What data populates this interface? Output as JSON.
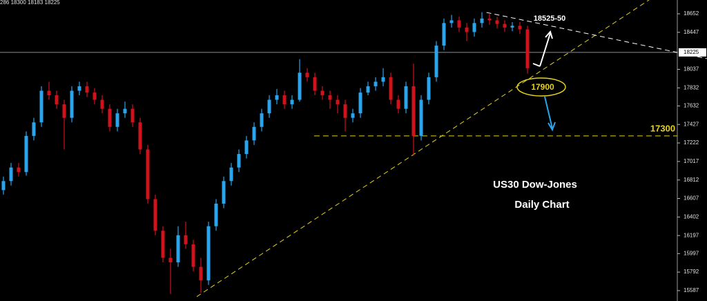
{
  "chart_data": {
    "type": "candlestick",
    "header": "286 18300 18183 18225",
    "title": "US30 Dow-Jones",
    "subtitle": "Daily Chart",
    "up_color": "#2aa4ec",
    "down_color": "#d0121c",
    "ylim": [
      15472,
      18805
    ],
    "yticks": [
      18652,
      18447,
      18037,
      17832,
      17632,
      17427,
      17222,
      17017,
      16812,
      16607,
      16402,
      16197,
      15997,
      15792,
      15587
    ],
    "current_price": 18225,
    "level": {
      "value": 17300,
      "label": "17300",
      "from": 40.9
    },
    "trendlines": [
      {
        "color": "#e6d21e",
        "points": [
          [
            25.45,
            15520
          ],
          [
            85,
            18805
          ]
        ]
      },
      {
        "color": "#ffffff",
        "points": [
          [
            63.6,
            18667
          ],
          [
            92.6,
            18156
          ]
        ]
      }
    ],
    "annotations": {
      "target": "18525-50",
      "support": "17900"
    },
    "candles": [
      [
        16700,
        16850,
        16650,
        16800
      ],
      [
        16800,
        17000,
        16750,
        16950
      ],
      [
        16950,
        17000,
        16850,
        16900
      ],
      [
        16900,
        17350,
        16860,
        17300
      ],
      [
        17300,
        17500,
        17250,
        17450
      ],
      [
        17450,
        17850,
        17400,
        17800
      ],
      [
        17800,
        17900,
        17700,
        17750
      ],
      [
        17750,
        17800,
        17600,
        17650
      ],
      [
        17650,
        17700,
        17150,
        17500
      ],
      [
        17500,
        17850,
        17450,
        17800
      ],
      [
        17800,
        17900,
        17750,
        17850
      ],
      [
        17850,
        17900,
        17730,
        17780
      ],
      [
        17780,
        17830,
        17650,
        17700
      ],
      [
        17700,
        17750,
        17550,
        17600
      ],
      [
        17600,
        17650,
        17350,
        17400
      ],
      [
        17400,
        17600,
        17350,
        17550
      ],
      [
        17550,
        17680,
        17500,
        17600
      ],
      [
        17600,
        17650,
        17400,
        17450
      ],
      [
        17450,
        17500,
        17100,
        17150
      ],
      [
        17150,
        17200,
        16550,
        16600
      ],
      [
        16600,
        16650,
        16200,
        16250
      ],
      [
        16250,
        16300,
        15900,
        15950
      ],
      [
        15950,
        16050,
        15550,
        15900
      ],
      [
        15900,
        16300,
        15850,
        16200
      ],
      [
        16200,
        16350,
        16050,
        16100
      ],
      [
        16100,
        16150,
        15800,
        15850
      ],
      [
        15850,
        15950,
        15560,
        15700
      ],
      [
        15700,
        16350,
        15650,
        16300
      ],
      [
        16300,
        16600,
        16250,
        16550
      ],
      [
        16550,
        16850,
        16500,
        16800
      ],
      [
        16800,
        17000,
        16750,
        16950
      ],
      [
        16950,
        17150,
        16900,
        17100
      ],
      [
        17100,
        17300,
        17050,
        17250
      ],
      [
        17250,
        17450,
        17200,
        17400
      ],
      [
        17400,
        17600,
        17350,
        17550
      ],
      [
        17550,
        17750,
        17500,
        17700
      ],
      [
        17700,
        17820,
        17650,
        17750
      ],
      [
        17750,
        17800,
        17600,
        17650
      ],
      [
        17650,
        17750,
        17600,
        17700
      ],
      [
        17700,
        18150,
        17680,
        18000
      ],
      [
        18000,
        18050,
        17900,
        17950
      ],
      [
        17950,
        18000,
        17750,
        17800
      ],
      [
        17800,
        17850,
        17700,
        17750
      ],
      [
        17750,
        17800,
        17600,
        17700
      ],
      [
        17700,
        17750,
        17550,
        17650
      ],
      [
        17650,
        17700,
        17350,
        17500
      ],
      [
        17500,
        17600,
        17450,
        17550
      ],
      [
        17550,
        17830,
        17500,
        17780
      ],
      [
        17780,
        17900,
        17750,
        17850
      ],
      [
        17850,
        17950,
        17800,
        17900
      ],
      [
        17900,
        18050,
        17850,
        17950
      ],
      [
        17950,
        18000,
        17650,
        17700
      ],
      [
        17700,
        17750,
        17550,
        17600
      ],
      [
        17600,
        17900,
        17550,
        17850
      ],
      [
        17850,
        18100,
        17080,
        17300
      ],
      [
        17300,
        17750,
        17250,
        17700
      ],
      [
        17700,
        18000,
        17650,
        17950
      ],
      [
        17950,
        18350,
        17900,
        18300
      ],
      [
        18300,
        18600,
        18250,
        18550
      ],
      [
        18550,
        18640,
        18500,
        18580
      ],
      [
        18580,
        18620,
        18450,
        18500
      ],
      [
        18500,
        18550,
        18350,
        18450
      ],
      [
        18450,
        18600,
        18400,
        18550
      ],
      [
        18550,
        18670,
        18500,
        18600
      ],
      [
        18600,
        18660,
        18530,
        18580
      ],
      [
        18580,
        18620,
        18490,
        18540
      ],
      [
        18540,
        18580,
        18450,
        18500
      ],
      [
        18500,
        18560,
        18460,
        18520
      ],
      [
        18520,
        18560,
        18430,
        18480
      ],
      [
        18480,
        18520,
        17990,
        18050
      ]
    ]
  }
}
